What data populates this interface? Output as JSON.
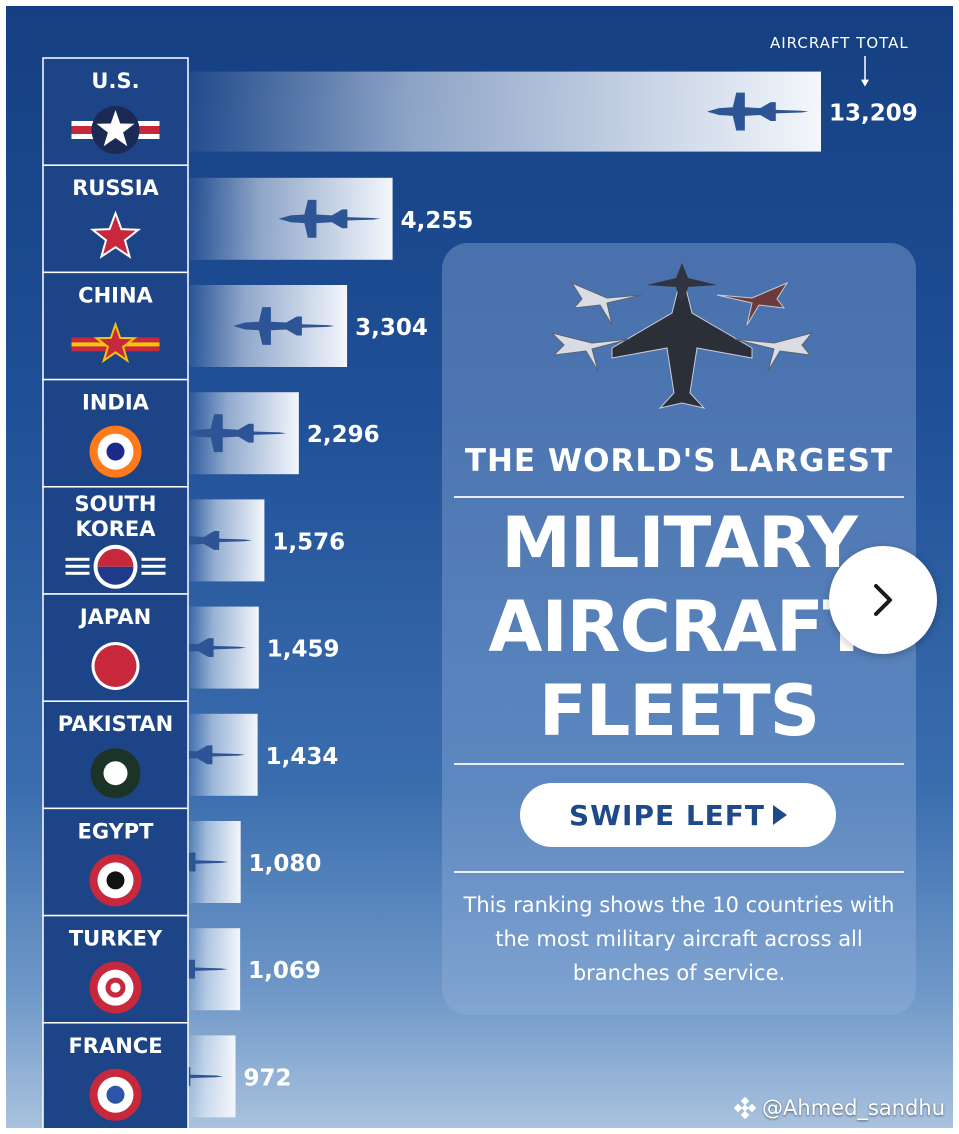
{
  "chart_data": {
    "type": "bar",
    "orientation": "horizontal",
    "categories": [
      "U.S.",
      "RUSSIA",
      "CHINA",
      "INDIA",
      "SOUTH KOREA",
      "JAPAN",
      "PAKISTAN",
      "EGYPT",
      "TURKEY",
      "FRANCE"
    ],
    "values": [
      13209,
      4255,
      3304,
      2296,
      1576,
      1459,
      1434,
      1080,
      1069,
      972
    ],
    "value_labels": [
      "13,209",
      "4,255",
      "3,304",
      "2,296",
      "1,576",
      "1,459",
      "1,434",
      "1,080",
      "1,069",
      "972"
    ],
    "annotation": "AIRCRAFT TOTAL",
    "insignia": [
      "us-roundel-icon",
      "russia-star-icon",
      "china-star-icon",
      "india-roundel-icon",
      "south-korea-roundel-icon",
      "japan-roundel-icon",
      "pakistan-roundel-icon",
      "egypt-roundel-icon",
      "turkey-roundel-icon",
      "france-roundel-icon"
    ]
  },
  "panel": {
    "subtitle": "THE WORLD'S LARGEST",
    "headline_lines": [
      "MILITARY",
      "AIRCRAFT",
      "FLEETS"
    ],
    "swipe_label": "SWIPE LEFT",
    "description": "This ranking shows the 10 countries with the most military aircraft across all branches of service."
  },
  "watermark": "@Ahmed_sandhu",
  "colors": {
    "background_top": "#153f82",
    "background_bottom": "#a9c2de",
    "bar_light": "#eef3fa",
    "jet_silhouette": "#2d5596",
    "text": "#ffffff"
  }
}
